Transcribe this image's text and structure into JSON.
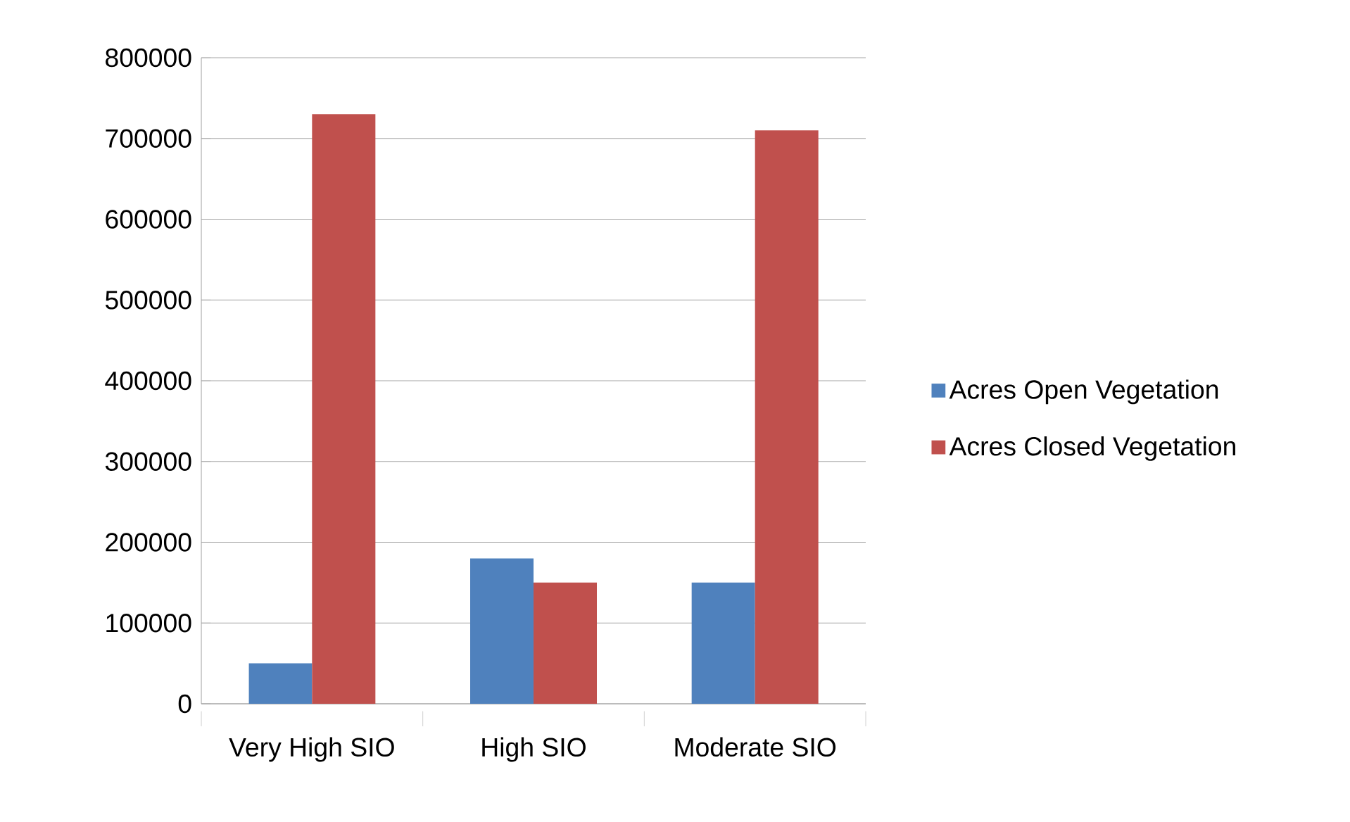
{
  "chart_data": {
    "type": "bar",
    "categories": [
      "Very High SIO",
      "High SIO",
      "Moderate SIO"
    ],
    "series": [
      {
        "name": "Acres Open Vegetation",
        "color": "#4f81bd",
        "values": [
          50000,
          180000,
          150000
        ]
      },
      {
        "name": "Acres Closed Vegetation",
        "color": "#c0504d",
        "values": [
          730000,
          150000,
          710000
        ]
      }
    ],
    "ylim": [
      0,
      800000
    ],
    "yticks": [
      0,
      100000,
      200000,
      300000,
      400000,
      500000,
      600000,
      700000,
      800000
    ],
    "grid": "y",
    "legend": "right"
  }
}
